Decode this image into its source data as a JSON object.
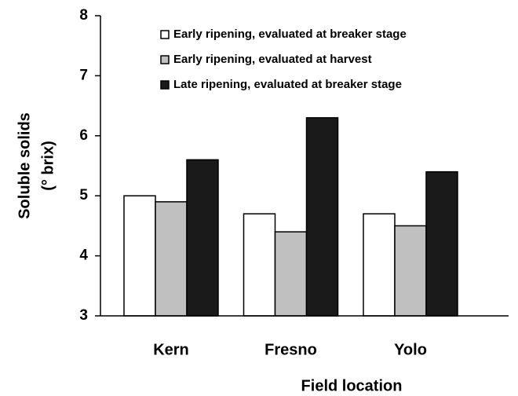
{
  "chart_data": {
    "type": "bar",
    "ylabel": [
      "Soluble solids",
      "(° brix)"
    ],
    "xlabel": "Field location",
    "categories": [
      "Kern",
      "Fresno",
      "Yolo"
    ],
    "series": [
      {
        "name": "Early ripening, evaluated at breaker stage",
        "color": "#ffffff",
        "values": [
          5.0,
          4.7,
          4.7
        ]
      },
      {
        "name": "Early ripening, evaluated at harvest",
        "color": "#c0c0c0",
        "values": [
          4.9,
          4.4,
          4.5
        ]
      },
      {
        "name": "Late ripening, evaluated at breaker stage",
        "color": "#1a1a1a",
        "values": [
          5.6,
          6.3,
          5.4
        ]
      }
    ],
    "ylim": [
      3,
      8
    ],
    "yticks": [
      3,
      4,
      5,
      6,
      7,
      8
    ],
    "legend": "top"
  }
}
